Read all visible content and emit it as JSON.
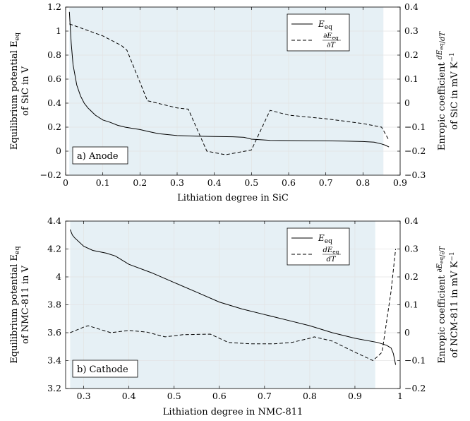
{
  "chart_data": [
    {
      "type": "line",
      "annotation": "a) Anode",
      "xlabel": "Lithiation degree in SiC",
      "ylabel": [
        "Equilibrium potential E",
        "eq",
        "of SiC in V"
      ],
      "y2label": [
        "Enropic coefficient ",
        "dE",
        "eq",
        "dT",
        "of SiC in mV K",
        "−1"
      ],
      "xlim": [
        0,
        0.9
      ],
      "ylim": [
        -0.2,
        1.2
      ],
      "y2lim": [
        -0.3,
        0.4
      ],
      "xticks": [
        0,
        0.1,
        0.2,
        0.3,
        0.4,
        0.5,
        0.6,
        0.7,
        0.8,
        0.9
      ],
      "xtick_labels": [
        "0",
        "0.1",
        "0.2",
        "0.3",
        "0.4",
        "0.5",
        "0.6",
        "0.7",
        "0.8",
        "0.9"
      ],
      "yticks": [
        -0.2,
        0,
        0.2,
        0.4,
        0.6,
        0.8,
        1,
        1.2
      ],
      "ytick_labels": [
        "−0.2",
        "0",
        "0.2",
        "0.4",
        "0.6",
        "0.8",
        "1",
        "1.2"
      ],
      "y2ticks": [
        -0.3,
        -0.2,
        -0.1,
        0,
        0.1,
        0.2,
        0.3,
        0.4
      ],
      "y2tick_labels": [
        "−0.3",
        "−0.2",
        "−0.1",
        "0",
        "0.1",
        "0.2",
        "0.3",
        "0.4"
      ],
      "shaded_region": [
        0.01,
        0.855
      ],
      "shade_color": "#e6f0f5",
      "grid": true,
      "legend_position": "top-right",
      "series": [
        {
          "name": "E",
          "name_sub": "eq",
          "style": "solid",
          "axis": "left",
          "x": [
            0.01,
            0.015,
            0.02,
            0.03,
            0.04,
            0.05,
            0.06,
            0.08,
            0.1,
            0.12,
            0.14,
            0.16,
            0.18,
            0.2,
            0.22,
            0.25,
            0.3,
            0.35,
            0.4,
            0.45,
            0.48,
            0.5,
            0.55,
            0.6,
            0.65,
            0.7,
            0.75,
            0.8,
            0.83,
            0.85,
            0.86,
            0.87
          ],
          "y": [
            1.16,
            0.9,
            0.72,
            0.55,
            0.46,
            0.4,
            0.36,
            0.3,
            0.26,
            0.24,
            0.215,
            0.2,
            0.19,
            0.18,
            0.165,
            0.145,
            0.13,
            0.125,
            0.122,
            0.12,
            0.115,
            0.1,
            0.09,
            0.088,
            0.087,
            0.086,
            0.084,
            0.08,
            0.075,
            0.06,
            0.05,
            0.035
          ]
        },
        {
          "name": "∂E",
          "name_sub": "eq",
          "name_den": "∂T",
          "style": "dashed",
          "axis": "right",
          "x": [
            0.01,
            0.1,
            0.15,
            0.165,
            0.22,
            0.3,
            0.33,
            0.38,
            0.43,
            0.5,
            0.55,
            0.6,
            0.7,
            0.8,
            0.85,
            0.87
          ],
          "y": [
            0.33,
            0.28,
            0.24,
            0.22,
            0.01,
            -0.02,
            -0.025,
            -0.2,
            -0.215,
            -0.195,
            -0.03,
            -0.05,
            -0.065,
            -0.085,
            -0.1,
            -0.155
          ]
        }
      ]
    },
    {
      "type": "line",
      "annotation": "b) Cathode",
      "xlabel": "Lithiation degree in NMC-811",
      "ylabel": [
        "Equilibrium potential E",
        "eq",
        "of NMC-811 in V"
      ],
      "y2label": [
        "Enropic coefficient ",
        "∂E",
        "eq",
        "∂T",
        "of NCM-811 in mV K",
        "−1"
      ],
      "xlim": [
        0.26,
        1
      ],
      "ylim": [
        3.2,
        4.4
      ],
      "y2lim": [
        -0.2,
        0.4
      ],
      "xticks": [
        0.3,
        0.4,
        0.5,
        0.6,
        0.7,
        0.8,
        0.9,
        1
      ],
      "xtick_labels": [
        "0.3",
        "0.4",
        "0.5",
        "0.6",
        "0.7",
        "0.8",
        "0.9",
        "1"
      ],
      "yticks": [
        3.2,
        3.4,
        3.6,
        3.8,
        4,
        4.2,
        4.4
      ],
      "ytick_labels": [
        "3.2",
        "3.4",
        "3.6",
        "3.8",
        "4",
        "4.2",
        "4.4"
      ],
      "y2ticks": [
        -0.2,
        -0.1,
        0,
        0.1,
        0.2,
        0.3,
        0.4
      ],
      "y2tick_labels": [
        "−0.2",
        "−0.1",
        "0",
        "0.1",
        "0.2",
        "0.3",
        "0.4"
      ],
      "shaded_region": [
        0.27,
        0.945
      ],
      "shade_color": "#e6f0f5",
      "grid": true,
      "legend_position": "top-right",
      "series": [
        {
          "name": "E",
          "name_sub": "eq",
          "style": "solid",
          "axis": "left",
          "x": [
            0.27,
            0.275,
            0.28,
            0.3,
            0.32,
            0.35,
            0.37,
            0.4,
            0.45,
            0.5,
            0.55,
            0.6,
            0.65,
            0.7,
            0.75,
            0.8,
            0.85,
            0.9,
            0.95,
            0.97,
            0.98,
            0.985,
            0.99
          ],
          "y": [
            4.34,
            4.3,
            4.28,
            4.22,
            4.19,
            4.17,
            4.15,
            4.09,
            4.03,
            3.96,
            3.89,
            3.82,
            3.77,
            3.73,
            3.69,
            3.65,
            3.6,
            3.56,
            3.53,
            3.51,
            3.49,
            3.45,
            3.37
          ]
        },
        {
          "name": "dE",
          "name_sub": "eq",
          "name_den": "dT",
          "style": "dashed",
          "axis": "right",
          "x": [
            0.27,
            0.3,
            0.31,
            0.33,
            0.36,
            0.4,
            0.44,
            0.48,
            0.52,
            0.58,
            0.62,
            0.67,
            0.72,
            0.76,
            0.8,
            0.81,
            0.85,
            0.9,
            0.94,
            0.96,
            0.98,
            0.99
          ],
          "y": [
            0.0,
            0.02,
            0.025,
            0.015,
            0.0,
            0.008,
            0.002,
            -0.015,
            -0.007,
            -0.005,
            -0.035,
            -0.04,
            -0.04,
            -0.035,
            -0.02,
            -0.015,
            -0.03,
            -0.07,
            -0.1,
            -0.07,
            0.15,
            0.3
          ]
        }
      ]
    }
  ]
}
